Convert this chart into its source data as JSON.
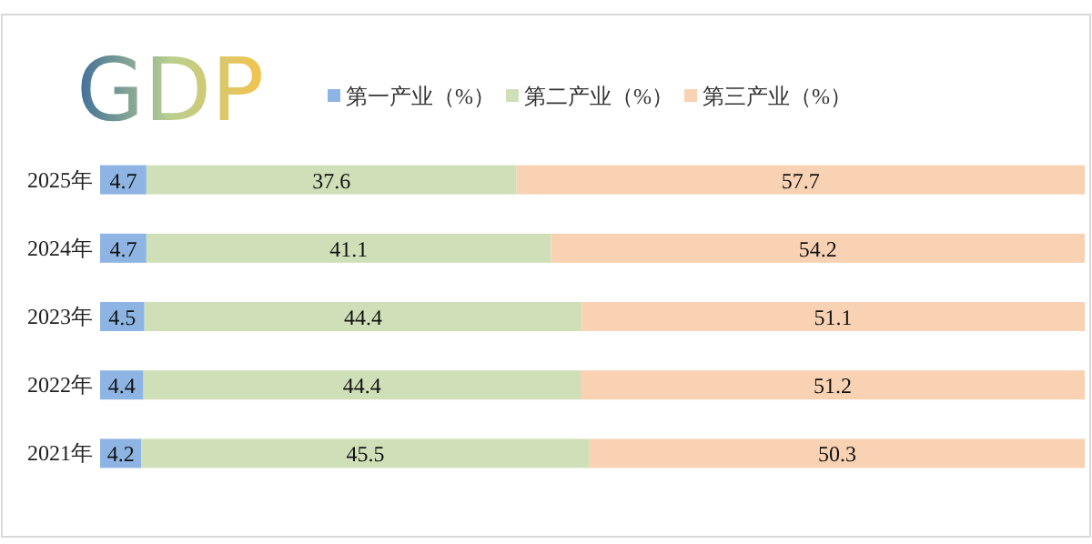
{
  "chart_data": {
    "type": "bar",
    "orientation": "horizontal",
    "stacked": true,
    "data_labels": true,
    "legend": "top",
    "title": "GDP",
    "categories": [
      "2025年",
      "2024年",
      "2023年",
      "2022年",
      "2021年"
    ],
    "series": [
      {
        "name": "第一产业（%）",
        "color": "#8db4e2",
        "values": [
          4.7,
          4.7,
          4.5,
          4.4,
          4.2
        ]
      },
      {
        "name": "第二产业（%）",
        "color": "#cfe0b8",
        "values": [
          37.6,
          41.1,
          44.4,
          44.4,
          45.5
        ]
      },
      {
        "name": "第三产业（%）",
        "color": "#f9d2b4",
        "values": [
          57.7,
          54.2,
          51.1,
          51.2,
          50.3
        ]
      }
    ]
  }
}
